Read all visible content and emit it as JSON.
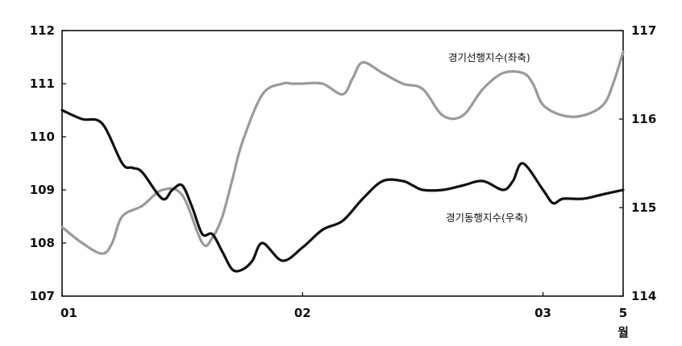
{
  "chart_data": {
    "type": "line",
    "title": "",
    "x_tick_labels": [
      "01",
      "02",
      "03",
      "5"
    ],
    "x_unit_label": "월",
    "left_axis": {
      "ylim": [
        107,
        112
      ],
      "ticks": [
        "107",
        "108",
        "109",
        "110",
        "111",
        "112"
      ]
    },
    "right_axis": {
      "ylim": [
        114,
        117
      ],
      "ticks": [
        "114",
        "115",
        "116",
        "117"
      ]
    },
    "x_range": [
      0,
      28
    ],
    "x_ticks_at": [
      0,
      12,
      24,
      28
    ],
    "series": [
      {
        "name": "경기선행지수(좌축)",
        "axis": "left",
        "color": "#9a9a9a",
        "x": [
          0,
          1,
          2,
          2.5,
          3,
          4,
          5,
          6,
          7,
          7.5,
          8,
          8.5,
          9,
          10,
          11,
          11.5,
          12,
          13,
          14,
          14.5,
          15,
          16,
          17,
          18,
          19,
          20,
          21,
          22,
          23,
          23.5,
          24,
          25,
          26,
          27,
          27.5,
          28
        ],
        "values": [
          108.3,
          108.0,
          107.8,
          108.0,
          108.5,
          108.7,
          109.0,
          108.9,
          108.0,
          108.1,
          108.5,
          109.2,
          109.9,
          110.8,
          111.0,
          111.0,
          111.0,
          111.0,
          110.8,
          111.1,
          111.4,
          111.2,
          111.0,
          110.9,
          110.4,
          110.4,
          110.9,
          111.2,
          111.2,
          111.0,
          110.6,
          110.4,
          110.4,
          110.6,
          111.0,
          111.6
        ]
      },
      {
        "name": "경기동행지수(우축)",
        "axis": "right",
        "color": "#111111",
        "x": [
          0,
          1,
          2,
          3,
          3.5,
          4,
          5,
          5.5,
          6,
          6.5,
          7,
          7.5,
          8,
          8.5,
          9,
          9.5,
          10,
          11,
          12,
          13,
          14,
          15,
          16,
          17,
          17.5,
          18,
          19,
          20,
          21,
          22,
          22.5,
          23,
          24,
          24.5,
          25,
          26,
          27,
          28
        ],
        "values": [
          116.1,
          116.0,
          115.95,
          115.5,
          115.45,
          115.4,
          115.1,
          115.2,
          115.25,
          115.0,
          114.7,
          114.7,
          114.5,
          114.3,
          114.3,
          114.4,
          114.6,
          114.4,
          114.55,
          114.75,
          114.85,
          115.1,
          115.3,
          115.3,
          115.25,
          115.2,
          115.2,
          115.25,
          115.3,
          115.2,
          115.3,
          115.5,
          115.2,
          115.05,
          115.1,
          115.1,
          115.15,
          115.2
        ]
      }
    ],
    "grid": false,
    "legend": "inline annotations"
  }
}
